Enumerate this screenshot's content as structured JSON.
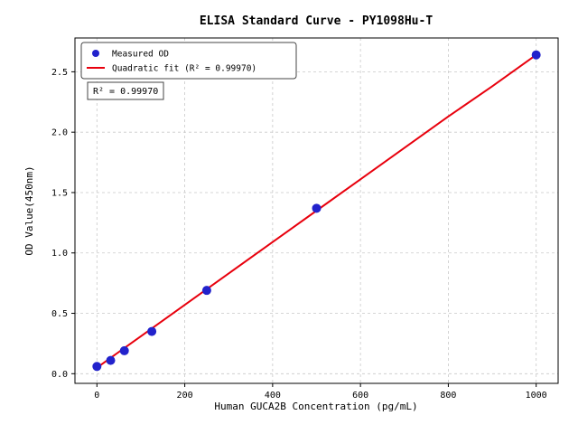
{
  "figure": {
    "background": "#ffffff"
  },
  "chart_data": {
    "type": "scatter",
    "title": "ELISA Standard Curve - PY1098Hu-T",
    "xlabel": "Human GUCA2B Concentration (pg/mL)",
    "ylabel": "OD Value(450nm)",
    "xlim": [
      -50,
      1050
    ],
    "ylim": [
      -0.08,
      2.78
    ],
    "xticks": [
      0,
      200,
      400,
      600,
      800,
      1000
    ],
    "yticks": [
      0.0,
      0.5,
      1.0,
      1.5,
      2.0,
      2.5
    ],
    "grid": true,
    "annotation": "R² = 0.99970",
    "legend": {
      "position": "upper-left",
      "entries": [
        {
          "label": "Measured OD",
          "marker": "dot",
          "color": "#2222cc"
        },
        {
          "label": "Quadratic fit (R² = 0.99970)",
          "marker": "line",
          "color": "#e8000d"
        }
      ]
    },
    "series": [
      {
        "name": "Measured OD",
        "type": "scatter",
        "color": "#2222cc",
        "marker_radius": 4.5,
        "points": [
          [
            0,
            0.06
          ],
          [
            31.25,
            0.11
          ],
          [
            62.5,
            0.19
          ],
          [
            125,
            0.35
          ],
          [
            250,
            0.69
          ],
          [
            500,
            1.37
          ],
          [
            1000,
            2.64
          ]
        ]
      },
      {
        "name": "Quadratic fit",
        "type": "line",
        "color": "#e8000d",
        "stroke_width": 2,
        "points": [
          [
            0,
            0.05
          ],
          [
            100,
            0.31
          ],
          [
            200,
            0.57
          ],
          [
            300,
            0.83
          ],
          [
            400,
            1.09
          ],
          [
            500,
            1.35
          ],
          [
            600,
            1.61
          ],
          [
            700,
            1.87
          ],
          [
            800,
            2.13
          ],
          [
            900,
            2.38
          ],
          [
            1000,
            2.64
          ]
        ]
      }
    ]
  }
}
